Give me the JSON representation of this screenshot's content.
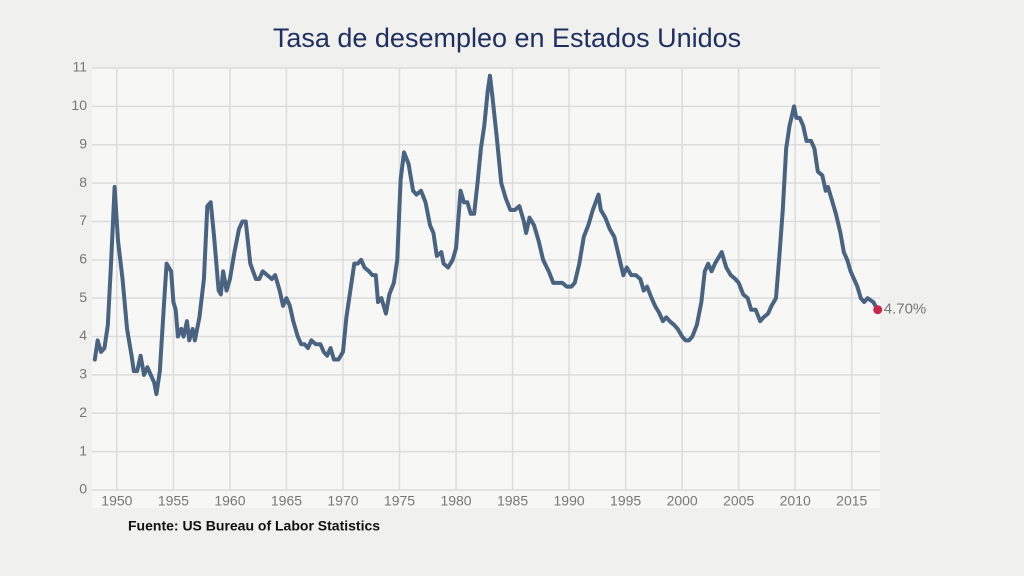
{
  "chart_data": {
    "type": "line",
    "title": "Tasa de desempleo en Estados Unidos",
    "source": "Fuente: US Bureau of Labor Statistics",
    "x": [
      1948.05,
      1948.3,
      1948.6,
      1948.9,
      1949.2,
      1949.5,
      1949.8,
      1950.1,
      1950.5,
      1950.9,
      1951.3,
      1951.5,
      1951.8,
      1952.1,
      1952.4,
      1952.7,
      1953.0,
      1953.3,
      1953.5,
      1953.8,
      1954.2,
      1954.4,
      1954.8,
      1955.0,
      1955.2,
      1955.4,
      1955.7,
      1955.9,
      1956.2,
      1956.4,
      1956.7,
      1956.9,
      1957.3,
      1957.7,
      1958.0,
      1958.3,
      1958.6,
      1959.0,
      1959.2,
      1959.4,
      1959.7,
      1960.0,
      1960.4,
      1960.8,
      1961.1,
      1961.4,
      1961.8,
      1962.3,
      1962.6,
      1962.9,
      1963.3,
      1963.7,
      1964.0,
      1964.4,
      1964.7,
      1965.0,
      1965.3,
      1965.6,
      1966.0,
      1966.3,
      1966.6,
      1966.9,
      1967.2,
      1967.6,
      1968.0,
      1968.3,
      1968.6,
      1968.9,
      1969.2,
      1969.6,
      1970.0,
      1970.3,
      1970.7,
      1971.0,
      1971.3,
      1971.6,
      1971.9,
      1972.3,
      1972.6,
      1972.9,
      1973.1,
      1973.4,
      1973.8,
      1974.1,
      1974.5,
      1974.8,
      1975.1,
      1975.4,
      1975.8,
      1976.2,
      1976.5,
      1976.9,
      1977.3,
      1977.7,
      1978.0,
      1978.3,
      1978.7,
      1978.9,
      1979.3,
      1979.7,
      1980.0,
      1980.4,
      1980.7,
      1981.0,
      1981.3,
      1981.6,
      1981.9,
      1982.2,
      1982.5,
      1982.8,
      1983.0,
      1983.2,
      1983.6,
      1984.0,
      1984.4,
      1984.8,
      1985.2,
      1985.6,
      1986.0,
      1986.2,
      1986.5,
      1986.9,
      1987.3,
      1987.7,
      1988.2,
      1988.6,
      1989.0,
      1989.4,
      1989.8,
      1990.2,
      1990.5,
      1990.9,
      1991.3,
      1991.7,
      1992.1,
      1992.6,
      1992.8,
      1993.2,
      1993.6,
      1994.0,
      1994.4,
      1994.8,
      1995.1,
      1995.5,
      1995.9,
      1996.3,
      1996.6,
      1996.9,
      1997.3,
      1997.6,
      1998.0,
      1998.3,
      1998.6,
      1998.9,
      1999.3,
      1999.6,
      2000.0,
      2000.3,
      2000.6,
      2000.9,
      2001.3,
      2001.7,
      2002.0,
      2002.3,
      2002.6,
      2002.9,
      2003.3,
      2003.5,
      2003.9,
      2004.3,
      2004.7,
      2005.0,
      2005.4,
      2005.8,
      2006.1,
      2006.5,
      2006.9,
      2007.2,
      2007.6,
      2007.9,
      2008.3,
      2008.6,
      2008.9,
      2009.2,
      2009.5,
      2009.9,
      2010.1,
      2010.4,
      2010.7,
      2011.0,
      2011.4,
      2011.7,
      2012.0,
      2012.4,
      2012.7,
      2012.9,
      2013.3,
      2013.6,
      2014.0,
      2014.3,
      2014.6,
      2014.9,
      2015.2,
      2015.5,
      2015.8,
      2016.1,
      2016.4,
      2016.9,
      2017.3
    ],
    "series": [
      {
        "color": "#4a6380",
        "values": [
          3.4,
          3.9,
          3.6,
          3.7,
          4.3,
          6.0,
          7.9,
          6.5,
          5.5,
          4.2,
          3.5,
          3.1,
          3.1,
          3.5,
          3.0,
          3.2,
          3.0,
          2.8,
          2.5,
          3.1,
          5.0,
          5.9,
          5.7,
          4.9,
          4.7,
          4.0,
          4.2,
          4.0,
          4.4,
          3.9,
          4.2,
          3.9,
          4.5,
          5.5,
          7.4,
          7.5,
          6.6,
          5.2,
          5.1,
          5.7,
          5.2,
          5.5,
          6.2,
          6.8,
          7.0,
          7.0,
          5.9,
          5.5,
          5.5,
          5.7,
          5.6,
          5.5,
          5.6,
          5.2,
          4.8,
          5.0,
          4.8,
          4.4,
          4.0,
          3.8,
          3.8,
          3.7,
          3.9,
          3.8,
          3.8,
          3.6,
          3.5,
          3.7,
          3.4,
          3.4,
          3.6,
          4.5,
          5.3,
          5.9,
          5.9,
          6.0,
          5.8,
          5.7,
          5.6,
          5.6,
          4.9,
          5.0,
          4.6,
          5.1,
          5.4,
          6.0,
          8.1,
          8.8,
          8.5,
          7.8,
          7.7,
          7.8,
          7.5,
          6.9,
          6.7,
          6.1,
          6.2,
          5.9,
          5.8,
          6.0,
          6.3,
          7.8,
          7.5,
          7.5,
          7.2,
          7.2,
          8.0,
          8.9,
          9.5,
          10.4,
          10.8,
          10.3,
          9.2,
          8.0,
          7.6,
          7.3,
          7.3,
          7.4,
          7.0,
          6.7,
          7.1,
          6.9,
          6.5,
          6.0,
          5.7,
          5.4,
          5.4,
          5.4,
          5.3,
          5.3,
          5.4,
          5.9,
          6.6,
          6.9,
          7.3,
          7.7,
          7.3,
          7.1,
          6.8,
          6.6,
          6.1,
          5.6,
          5.8,
          5.6,
          5.6,
          5.5,
          5.2,
          5.3,
          5.0,
          4.8,
          4.6,
          4.4,
          4.5,
          4.4,
          4.3,
          4.2,
          4.0,
          3.9,
          3.9,
          4.0,
          4.3,
          4.9,
          5.7,
          5.9,
          5.7,
          5.9,
          6.1,
          6.2,
          5.8,
          5.6,
          5.5,
          5.4,
          5.1,
          5.0,
          4.7,
          4.7,
          4.4,
          4.5,
          4.6,
          4.8,
          5.0,
          6.1,
          7.3,
          8.9,
          9.5,
          10.0,
          9.7,
          9.7,
          9.5,
          9.1,
          9.1,
          8.9,
          8.3,
          8.2,
          7.8,
          7.9,
          7.5,
          7.2,
          6.7,
          6.2,
          6.0,
          5.7,
          5.5,
          5.3,
          5.0,
          4.9,
          5.0,
          4.9,
          4.7
        ]
      }
    ],
    "annotation": {
      "x": 2017.3,
      "y": 4.7,
      "label": "4.70%",
      "color": "#c8284a"
    },
    "xlim": [
      1947.8,
      2017.5
    ],
    "ylim": [
      0,
      11
    ],
    "xticks": [
      1950,
      1955,
      1960,
      1965,
      1970,
      1975,
      1980,
      1985,
      1990,
      1995,
      2000,
      2005,
      2010,
      2015
    ],
    "yticks": [
      0,
      1,
      2,
      3,
      4,
      5,
      6,
      7,
      8,
      9,
      10,
      11
    ],
    "grid": true
  }
}
